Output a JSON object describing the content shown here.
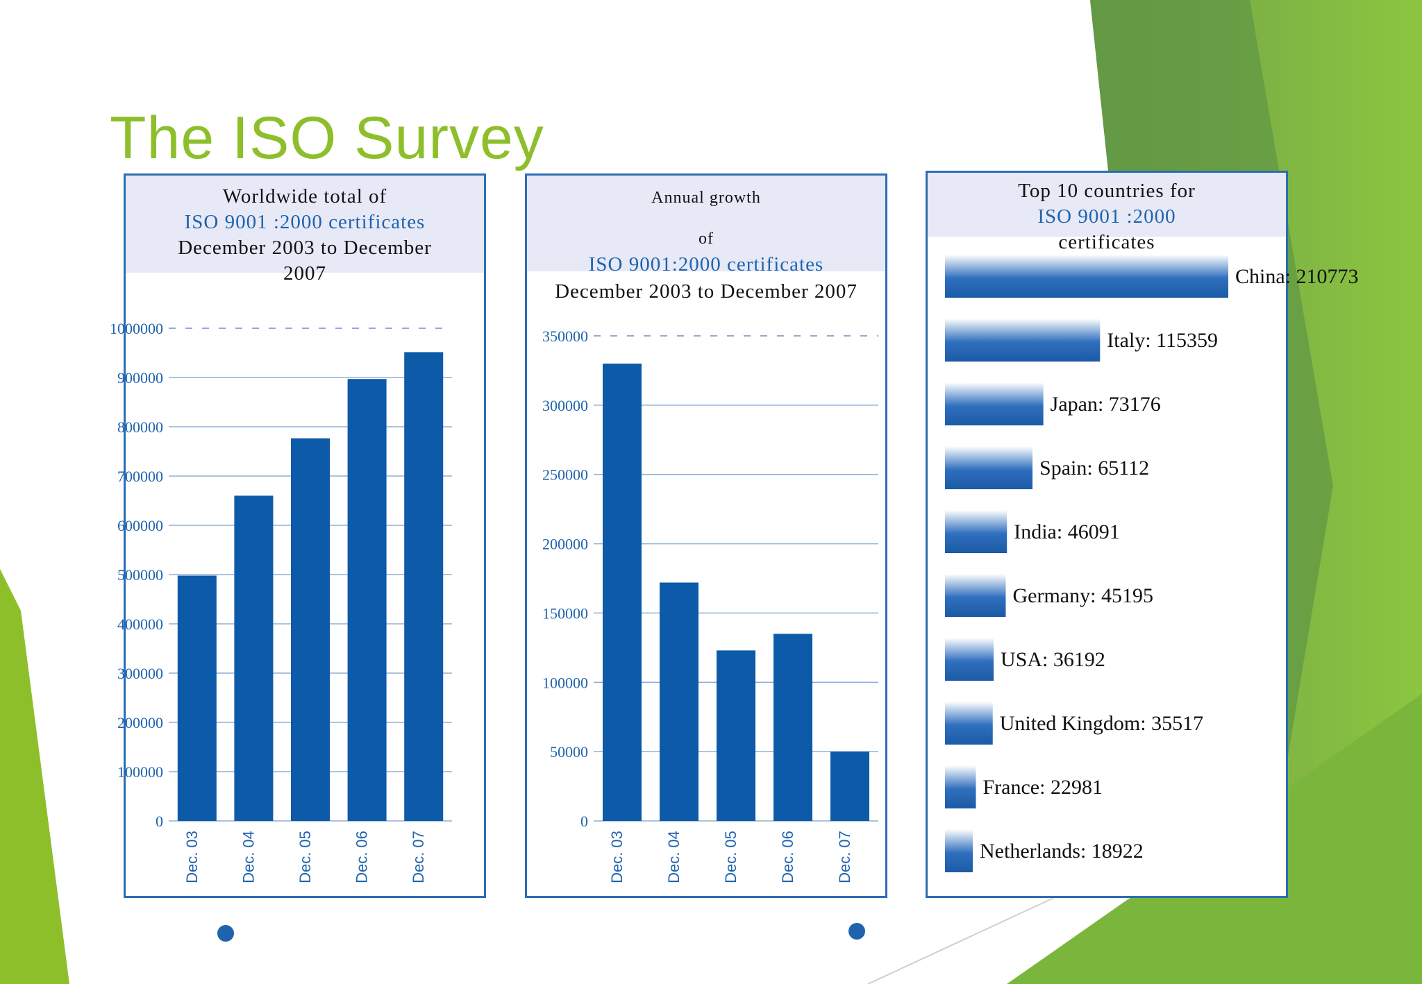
{
  "slide": {
    "title": "The ISO Survey"
  },
  "theme": {
    "accent_green": "#8dbf2b",
    "dark_green": "#5a9a32",
    "bar_blue": "#0d5aa8",
    "frame_blue": "#2c6db3",
    "header_bg": "#e7e9f6"
  },
  "panel1": {
    "header": [
      "Worldwide total of",
      "ISO 9001 :2000 certificates",
      "December 2003 to December",
      "2007"
    ]
  },
  "panel2": {
    "header": [
      "Annual growth",
      "of",
      "ISO 9001:2000 certificates",
      "December 2003 to December 2007"
    ]
  },
  "panel3": {
    "header": [
      "Top 10 countries for",
      "ISO 9001 :2000",
      "certificates"
    ]
  },
  "chart_data": [
    {
      "type": "bar",
      "title": "Worldwide total of ISO 9001 :2000 certificates December 2003 to December 2007",
      "categories": [
        "Dec. 03",
        "Dec. 04",
        "Dec. 05",
        "Dec. 06",
        "Dec. 07"
      ],
      "values": [
        497919,
        660132,
        776608,
        896929,
        951486
      ],
      "yticks": [
        0,
        100000,
        200000,
        300000,
        400000,
        500000,
        600000,
        700000,
        800000,
        900000,
        1000000
      ],
      "ylim": [
        0,
        1000000
      ],
      "color": "#0d5aa8"
    },
    {
      "type": "bar",
      "title": "Annual growth of ISO 9001:2000 certificates December 2003 to December 2007",
      "categories": [
        "Dec. 03",
        "Dec. 04",
        "Dec. 05",
        "Dec. 06",
        "Dec. 07"
      ],
      "values": [
        330000,
        172000,
        123000,
        135000,
        50000
      ],
      "yticks": [
        0,
        50000,
        100000,
        150000,
        200000,
        250000,
        300000,
        350000
      ],
      "ylim": [
        0,
        350000
      ],
      "color": "#0d5aa8"
    },
    {
      "type": "bar",
      "orientation": "horizontal",
      "title": "Top 10 countries for ISO 9001 :2000 certificates",
      "labels": [
        "China: 210773",
        "Italy: 115359",
        "Japan: 73176",
        "Spain: 65112",
        "India: 46091",
        "Germany: 45195",
        "USA: 36192",
        "United Kingdom: 35517",
        "France: 22981",
        "Netherlands: 18922"
      ],
      "values": [
        210773,
        115359,
        73176,
        65112,
        46091,
        45195,
        36192,
        35517,
        22981,
        18922
      ],
      "xlim": [
        0,
        210773
      ]
    }
  ]
}
